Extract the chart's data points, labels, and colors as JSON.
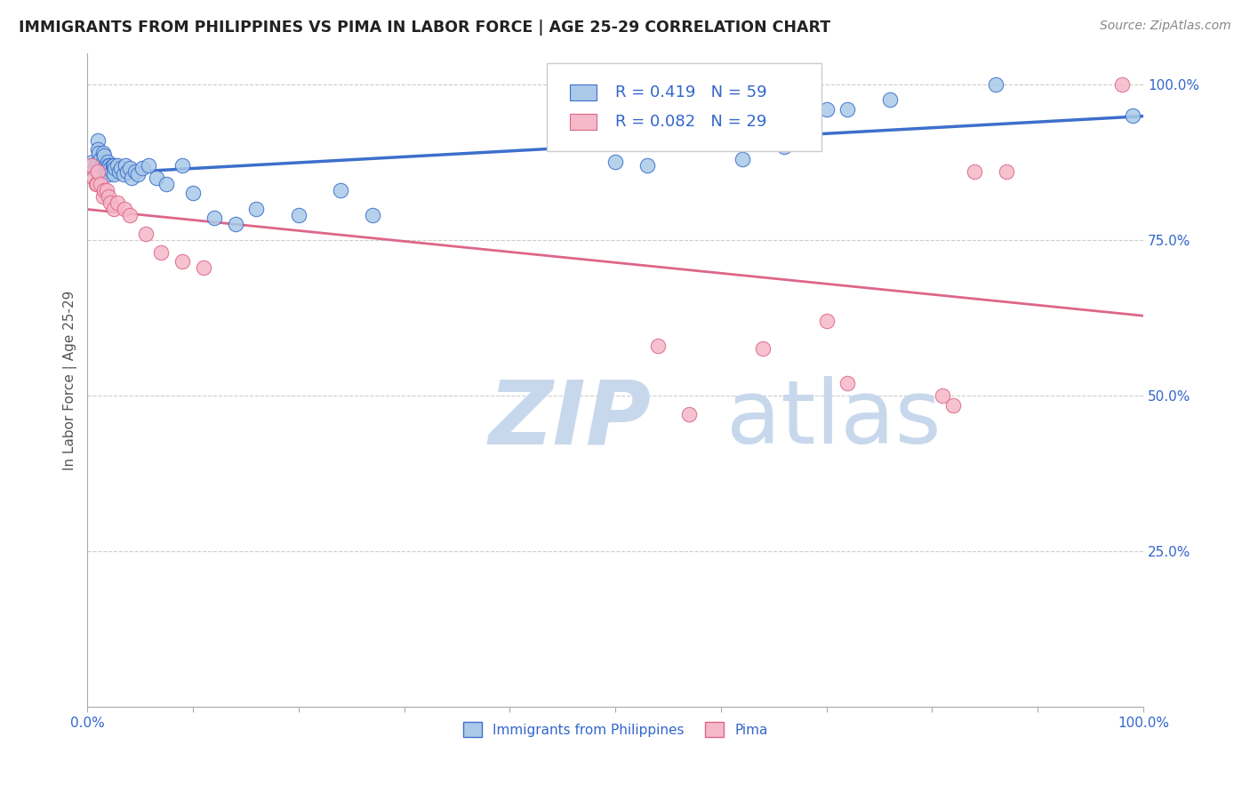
{
  "title": "IMMIGRANTS FROM PHILIPPINES VS PIMA IN LABOR FORCE | AGE 25-29 CORRELATION CHART",
  "source": "Source: ZipAtlas.com",
  "ylabel": "In Labor Force | Age 25-29",
  "xmin": 0.0,
  "xmax": 1.0,
  "ymin": 0.0,
  "ymax": 1.05,
  "ytick_labels": [
    "25.0%",
    "50.0%",
    "75.0%",
    "100.0%"
  ],
  "ytick_positions": [
    0.25,
    0.5,
    0.75,
    1.0
  ],
  "legend_labels": [
    "Immigrants from Philippines",
    "Pima"
  ],
  "R_blue": 0.419,
  "N_blue": 59,
  "R_pink": 0.082,
  "N_pink": 29,
  "blue_color": "#aac9e8",
  "pink_color": "#f5b8c8",
  "line_blue": "#3d6fcc",
  "line_pink": "#dd6688",
  "watermark_zip": "ZIP",
  "watermark_atlas": "atlas",
  "watermark_color_zip": "#c8d8ec",
  "watermark_color_atlas": "#c8d8ec",
  "blue_scatter_x": [
    0.005,
    0.007,
    0.008,
    0.009,
    0.01,
    0.01,
    0.01,
    0.01,
    0.011,
    0.012,
    0.013,
    0.014,
    0.015,
    0.015,
    0.015,
    0.016,
    0.017,
    0.018,
    0.019,
    0.02,
    0.02,
    0.021,
    0.022,
    0.023,
    0.024,
    0.025,
    0.025,
    0.026,
    0.028,
    0.03,
    0.032,
    0.034,
    0.036,
    0.038,
    0.04,
    0.042,
    0.045,
    0.048,
    0.052,
    0.058,
    0.065,
    0.075,
    0.09,
    0.1,
    0.12,
    0.14,
    0.16,
    0.2,
    0.24,
    0.27,
    0.5,
    0.53,
    0.62,
    0.66,
    0.7,
    0.72,
    0.76,
    0.86,
    0.99
  ],
  "blue_scatter_y": [
    0.875,
    0.87,
    0.865,
    0.86,
    0.91,
    0.895,
    0.875,
    0.86,
    0.89,
    0.88,
    0.87,
    0.865,
    0.89,
    0.875,
    0.86,
    0.885,
    0.87,
    0.86,
    0.875,
    0.87,
    0.855,
    0.87,
    0.865,
    0.86,
    0.87,
    0.87,
    0.855,
    0.865,
    0.87,
    0.86,
    0.865,
    0.855,
    0.87,
    0.86,
    0.865,
    0.85,
    0.86,
    0.855,
    0.865,
    0.87,
    0.85,
    0.84,
    0.87,
    0.825,
    0.785,
    0.775,
    0.8,
    0.79,
    0.83,
    0.79,
    0.875,
    0.87,
    0.88,
    0.9,
    0.96,
    0.96,
    0.975,
    1.0,
    0.95
  ],
  "pink_scatter_x": [
    0.004,
    0.006,
    0.008,
    0.009,
    0.01,
    0.012,
    0.015,
    0.016,
    0.018,
    0.02,
    0.022,
    0.025,
    0.028,
    0.035,
    0.04,
    0.055,
    0.07,
    0.09,
    0.11,
    0.54,
    0.57,
    0.64,
    0.7,
    0.72,
    0.81,
    0.82,
    0.84,
    0.87,
    0.98
  ],
  "pink_scatter_y": [
    0.87,
    0.85,
    0.84,
    0.84,
    0.86,
    0.84,
    0.82,
    0.83,
    0.83,
    0.82,
    0.81,
    0.8,
    0.81,
    0.8,
    0.79,
    0.76,
    0.73,
    0.715,
    0.705,
    0.58,
    0.47,
    0.575,
    0.62,
    0.52,
    0.5,
    0.485,
    0.86,
    0.86,
    1.0
  ]
}
